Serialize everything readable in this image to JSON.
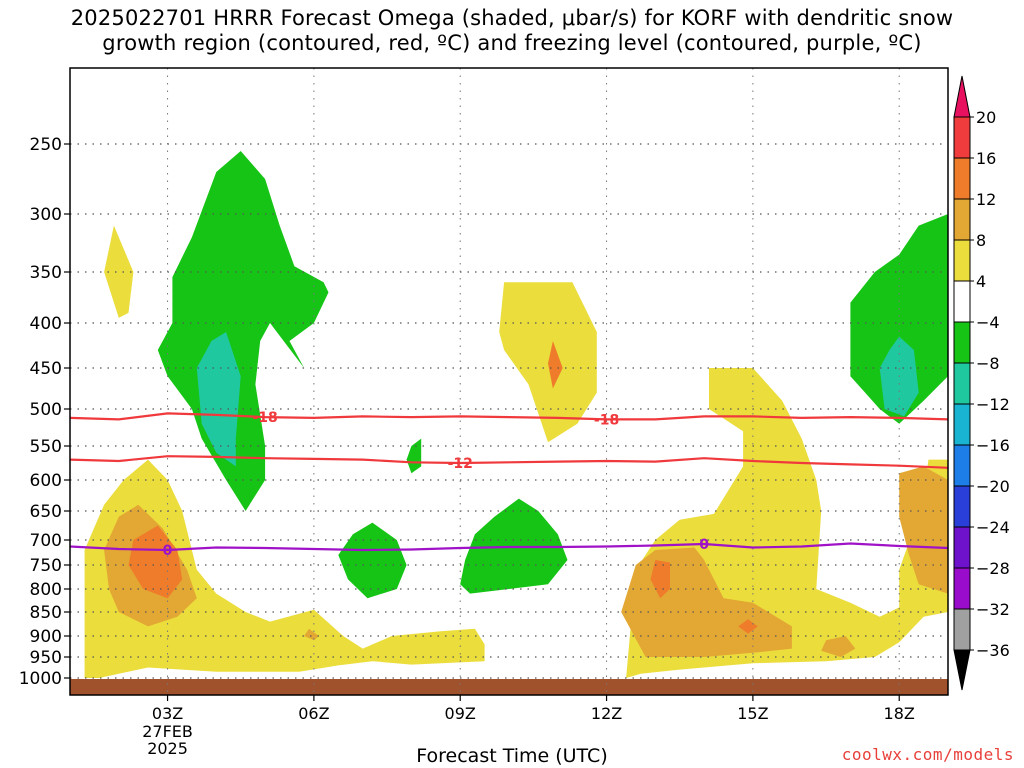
{
  "title": {
    "line1": "2025022701 HRRR Forecast Omega (shaded, μbar/s) for KORF with dendritic snow",
    "line2": "growth region (contoured, red, ºC) and freezing level (contoured, purple, ºC)"
  },
  "credit": "coolwx.com/models",
  "chart_data": {
    "type": "contour",
    "xlabel": "Forecast Time (UTC)",
    "ylabel": "",
    "x_ticks": [
      {
        "hour": 3,
        "label": "03Z"
      },
      {
        "hour": 6,
        "label": "06Z"
      },
      {
        "hour": 9,
        "label": "09Z"
      },
      {
        "hour": 12,
        "label": "12Z"
      },
      {
        "hour": 15,
        "label": "15Z"
      },
      {
        "hour": 18,
        "label": "18Z"
      }
    ],
    "x_date_label": [
      "27FEB",
      "2025"
    ],
    "xlim": [
      1,
      19
    ],
    "y_ticks": [
      250,
      300,
      350,
      400,
      450,
      500,
      550,
      600,
      650,
      700,
      750,
      800,
      850,
      900,
      950,
      1000
    ],
    "ylim": [
      200,
      1020
    ],
    "y_scale": "pressure",
    "grid": true,
    "colorbar": {
      "levels": [
        20,
        16,
        12,
        8,
        4,
        -4,
        -8,
        -12,
        -16,
        -20,
        -24,
        -28,
        -32,
        -36
      ],
      "colors": [
        "#e8115f",
        "#f03c3c",
        "#ee7c2a",
        "#e3a733",
        "#ebdd3c",
        "#ffffff",
        "#16c416",
        "#20c8a0",
        "#18b4d2",
        "#1e7ee8",
        "#2a3ed8",
        "#6e12cc",
        "#9a0ccc",
        "#a0a0a0",
        "#000000"
      ]
    },
    "contours": [
      {
        "name": "-18",
        "color": "#f0393c",
        "label_x": [
          5.0,
          12.0
        ],
        "points": [
          [
            1,
            512
          ],
          [
            2,
            514
          ],
          [
            3,
            506
          ],
          [
            4,
            508
          ],
          [
            5,
            511
          ],
          [
            6,
            512
          ],
          [
            7,
            510
          ],
          [
            8,
            511
          ],
          [
            9,
            510
          ],
          [
            10,
            511
          ],
          [
            11,
            512
          ],
          [
            12,
            514
          ],
          [
            13,
            514
          ],
          [
            14,
            510
          ],
          [
            15,
            510
          ],
          [
            16,
            512
          ],
          [
            17,
            511
          ],
          [
            18,
            512
          ],
          [
            19,
            514
          ]
        ]
      },
      {
        "name": "-12",
        "color": "#f0393c",
        "label_x": [
          9.0
        ],
        "points": [
          [
            1,
            570
          ],
          [
            2,
            572
          ],
          [
            3,
            565
          ],
          [
            4,
            566
          ],
          [
            5,
            568
          ],
          [
            6,
            569
          ],
          [
            7,
            570
          ],
          [
            8,
            574
          ],
          [
            9,
            575
          ],
          [
            10,
            574
          ],
          [
            11,
            573
          ],
          [
            12,
            572
          ],
          [
            13,
            573
          ],
          [
            14,
            568
          ],
          [
            15,
            572
          ],
          [
            16,
            575
          ],
          [
            17,
            577
          ],
          [
            18,
            579
          ],
          [
            19,
            582
          ]
        ]
      },
      {
        "name": "0",
        "color": "#a012c8",
        "label_x": [
          3.0,
          14.0
        ],
        "points": [
          [
            1,
            713
          ],
          [
            2,
            718
          ],
          [
            3,
            720
          ],
          [
            4,
            715
          ],
          [
            5,
            716
          ],
          [
            6,
            718
          ],
          [
            7,
            720
          ],
          [
            8,
            719
          ],
          [
            9,
            716
          ],
          [
            10,
            714
          ],
          [
            11,
            714
          ],
          [
            12,
            713
          ],
          [
            13,
            711
          ],
          [
            14,
            708
          ],
          [
            15,
            715
          ],
          [
            16,
            713
          ],
          [
            17,
            707
          ],
          [
            18,
            712
          ],
          [
            19,
            716
          ]
        ]
      }
    ],
    "regions": [
      {
        "level": "4",
        "points": [
          [
            1.3,
            1000
          ],
          [
            1.3,
            720
          ],
          [
            1.7,
            640
          ],
          [
            2.1,
            600
          ],
          [
            2.6,
            570
          ],
          [
            3.0,
            600
          ],
          [
            3.3,
            650
          ],
          [
            3.6,
            760
          ],
          [
            4.0,
            810
          ],
          [
            4.6,
            850
          ],
          [
            5.1,
            870
          ],
          [
            6.0,
            845
          ],
          [
            6.6,
            900
          ],
          [
            7.0,
            930
          ],
          [
            7.6,
            900
          ],
          [
            8.6,
            890
          ],
          [
            9.3,
            885
          ],
          [
            9.5,
            920
          ],
          [
            9.5,
            960
          ],
          [
            8.0,
            968
          ],
          [
            7.2,
            960
          ],
          [
            6.5,
            970
          ],
          [
            5.7,
            985
          ],
          [
            4.0,
            985
          ],
          [
            2.6,
            975
          ],
          [
            1.6,
            1000
          ]
        ]
      },
      {
        "level": "4",
        "points": [
          [
            2.0,
            395
          ],
          [
            1.7,
            350
          ],
          [
            1.9,
            310
          ],
          [
            2.3,
            350
          ],
          [
            2.2,
            390
          ]
        ]
      },
      {
        "level": "4",
        "points": [
          [
            9.8,
            410
          ],
          [
            9.9,
            360
          ],
          [
            11.3,
            360
          ],
          [
            11.8,
            410
          ],
          [
            11.8,
            480
          ],
          [
            11.4,
            520
          ],
          [
            10.8,
            545
          ],
          [
            10.4,
            470
          ],
          [
            9.9,
            430
          ]
        ]
      },
      {
        "level": "4",
        "points": [
          [
            12.4,
            1000
          ],
          [
            12.6,
            760
          ],
          [
            13.0,
            700
          ],
          [
            13.5,
            665
          ],
          [
            14.2,
            655
          ],
          [
            14.8,
            580
          ],
          [
            14.8,
            530
          ],
          [
            14.1,
            500
          ],
          [
            14.1,
            450
          ],
          [
            15.0,
            450
          ],
          [
            15.6,
            490
          ],
          [
            16.0,
            540
          ],
          [
            16.3,
            600
          ],
          [
            16.4,
            650
          ],
          [
            16.3,
            800
          ],
          [
            17.0,
            830
          ],
          [
            17.6,
            860
          ],
          [
            18.0,
            840
          ],
          [
            18.0,
            760
          ],
          [
            18.3,
            680
          ],
          [
            18.5,
            620
          ],
          [
            18.6,
            570
          ],
          [
            19.0,
            570
          ],
          [
            19.0,
            850
          ],
          [
            18.5,
            860
          ],
          [
            18.0,
            915
          ],
          [
            17.5,
            950
          ],
          [
            16.5,
            960
          ],
          [
            15.0,
            965
          ],
          [
            13.5,
            980
          ],
          [
            12.7,
            990
          ]
        ]
      },
      {
        "level": "8",
        "points": [
          [
            1.8,
            800
          ],
          [
            1.7,
            720
          ],
          [
            2.0,
            660
          ],
          [
            2.4,
            640
          ],
          [
            2.9,
            680
          ],
          [
            3.4,
            760
          ],
          [
            3.6,
            820
          ],
          [
            3.2,
            860
          ],
          [
            2.6,
            880
          ],
          [
            2.0,
            850
          ]
        ]
      },
      {
        "level": "8",
        "points": [
          [
            5.9,
            885
          ],
          [
            6.1,
            900
          ],
          [
            6.0,
            910
          ],
          [
            5.8,
            900
          ]
        ]
      },
      {
        "level": "8",
        "points": [
          [
            12.3,
            850
          ],
          [
            12.6,
            750
          ],
          [
            13.0,
            720
          ],
          [
            13.8,
            715
          ],
          [
            14.0,
            740
          ],
          [
            14.4,
            820
          ],
          [
            15.0,
            830
          ],
          [
            15.8,
            880
          ],
          [
            15.8,
            930
          ],
          [
            15.0,
            940
          ],
          [
            14.0,
            950
          ],
          [
            12.8,
            950
          ]
        ]
      },
      {
        "level": "8",
        "points": [
          [
            16.5,
            910
          ],
          [
            16.9,
            900
          ],
          [
            17.1,
            930
          ],
          [
            16.8,
            950
          ],
          [
            16.4,
            935
          ]
        ]
      },
      {
        "level": "8",
        "points": [
          [
            18.0,
            660
          ],
          [
            18.0,
            590
          ],
          [
            18.5,
            580
          ],
          [
            19.0,
            600
          ],
          [
            19.0,
            810
          ],
          [
            18.4,
            790
          ],
          [
            18.2,
            730
          ]
        ]
      },
      {
        "level": "12",
        "points": [
          [
            2.2,
            750
          ],
          [
            2.3,
            700
          ],
          [
            2.8,
            675
          ],
          [
            3.2,
            720
          ],
          [
            3.3,
            780
          ],
          [
            3.0,
            820
          ],
          [
            2.5,
            800
          ]
        ]
      },
      {
        "level": "12",
        "points": [
          [
            12.9,
            780
          ],
          [
            13.0,
            740
          ],
          [
            13.3,
            745
          ],
          [
            13.3,
            800
          ],
          [
            13.1,
            820
          ]
        ]
      },
      {
        "level": "12",
        "points": [
          [
            14.7,
            880
          ],
          [
            14.9,
            865
          ],
          [
            15.1,
            880
          ],
          [
            14.9,
            895
          ]
        ]
      },
      {
        "level": "12",
        "points": [
          [
            10.8,
            445
          ],
          [
            10.9,
            420
          ],
          [
            11.1,
            450
          ],
          [
            10.9,
            475
          ]
        ]
      },
      {
        "level": "-4",
        "points": [
          [
            3.1,
            400
          ],
          [
            3.1,
            355
          ],
          [
            3.5,
            320
          ],
          [
            4.0,
            270
          ],
          [
            4.5,
            255
          ],
          [
            5.0,
            275
          ],
          [
            5.3,
            310
          ],
          [
            5.6,
            345
          ],
          [
            6.2,
            360
          ],
          [
            6.3,
            370
          ],
          [
            6.0,
            400
          ],
          [
            5.5,
            420
          ],
          [
            5.8,
            450
          ],
          [
            5.1,
            400
          ],
          [
            4.9,
            420
          ],
          [
            4.8,
            470
          ],
          [
            5.0,
            550
          ],
          [
            5.0,
            600
          ],
          [
            4.6,
            650
          ],
          [
            4.2,
            600
          ],
          [
            3.7,
            540
          ],
          [
            3.5,
            500
          ],
          [
            3.0,
            460
          ],
          [
            2.8,
            430
          ]
        ]
      },
      {
        "level": "-4",
        "points": [
          [
            8.0,
            550
          ],
          [
            8.2,
            540
          ],
          [
            8.2,
            580
          ],
          [
            8.0,
            590
          ],
          [
            7.9,
            570
          ]
        ]
      },
      {
        "level": "-4",
        "points": [
          [
            6.5,
            730
          ],
          [
            6.8,
            690
          ],
          [
            7.2,
            670
          ],
          [
            7.7,
            700
          ],
          [
            7.9,
            750
          ],
          [
            7.7,
            800
          ],
          [
            7.1,
            820
          ],
          [
            6.7,
            780
          ]
        ]
      },
      {
        "level": "-4",
        "points": [
          [
            9.1,
            740
          ],
          [
            9.3,
            690
          ],
          [
            9.7,
            660
          ],
          [
            10.2,
            630
          ],
          [
            10.6,
            650
          ],
          [
            11.0,
            690
          ],
          [
            11.2,
            740
          ],
          [
            10.8,
            790
          ],
          [
            10.0,
            800
          ],
          [
            9.2,
            810
          ],
          [
            9.0,
            790
          ]
        ]
      },
      {
        "level": "-4",
        "points": [
          [
            17.0,
            380
          ],
          [
            17.5,
            350
          ],
          [
            18.0,
            335
          ],
          [
            18.4,
            310
          ],
          [
            19.0,
            300
          ],
          [
            19.0,
            460
          ],
          [
            18.5,
            490
          ],
          [
            18.0,
            520
          ],
          [
            17.6,
            500
          ],
          [
            17.3,
            480
          ],
          [
            17.0,
            460
          ]
        ]
      },
      {
        "level": "-8",
        "points": [
          [
            3.6,
            450
          ],
          [
            3.9,
            420
          ],
          [
            4.2,
            410
          ],
          [
            4.5,
            460
          ],
          [
            4.4,
            540
          ],
          [
            4.4,
            580
          ],
          [
            4.0,
            560
          ],
          [
            3.7,
            520
          ]
        ]
      },
      {
        "level": "-8",
        "points": [
          [
            17.6,
            450
          ],
          [
            17.8,
            430
          ],
          [
            18.0,
            415
          ],
          [
            18.3,
            430
          ],
          [
            18.4,
            480
          ],
          [
            18.1,
            510
          ],
          [
            17.7,
            500
          ]
        ]
      }
    ]
  }
}
